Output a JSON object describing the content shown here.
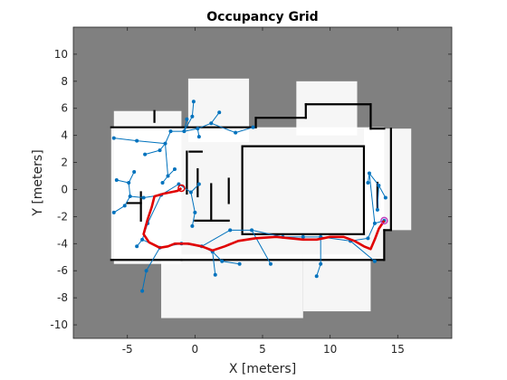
{
  "chart_data": {
    "type": "scatter",
    "title": "Occupancy Grid",
    "xlabel": "X [meters]",
    "ylabel": "Y [meters]",
    "xlim": [
      -9,
      19
    ],
    "ylim": [
      -11,
      12
    ],
    "xticks": [
      -5,
      0,
      5,
      10,
      15
    ],
    "yticks": [
      -10,
      -8,
      -6,
      -4,
      -2,
      0,
      2,
      4,
      6,
      8,
      10
    ],
    "grid": false,
    "colors": {
      "unknown": "#808080",
      "free": "#ffffff",
      "occupied": "#000000",
      "tree": "#0072bd",
      "path": "#e00000",
      "start": "#e00000",
      "goal": "#c040c0"
    },
    "free_regions": [
      {
        "x": [
          -6.2,
          14
        ],
        "y": [
          -5.2,
          4.6
        ]
      },
      {
        "x": [
          -6,
          -1
        ],
        "y": [
          -5.5,
          5.8
        ]
      },
      {
        "x": [
          -0.5,
          4
        ],
        "y": [
          3.5,
          8.2
        ]
      },
      {
        "x": [
          7.5,
          12
        ],
        "y": [
          4,
          8
        ]
      },
      {
        "x": [
          -2.5,
          8
        ],
        "y": [
          -9.5,
          -4.8
        ]
      },
      {
        "x": [
          8,
          13
        ],
        "y": [
          -9,
          -4.8
        ]
      },
      {
        "x": [
          12.5,
          16
        ],
        "y": [
          -3,
          4.5
        ]
      }
    ],
    "walls": [
      [
        [
          -6.2,
          4.6
        ],
        [
          4.5,
          4.6
        ]
      ],
      [
        [
          4.5,
          4.6
        ],
        [
          4.5,
          5.3
        ]
      ],
      [
        [
          4.5,
          5.3
        ],
        [
          8.2,
          5.3
        ]
      ],
      [
        [
          8.2,
          5.3
        ],
        [
          8.2,
          6.3
        ]
      ],
      [
        [
          8.2,
          6.3
        ],
        [
          13,
          6.3
        ]
      ],
      [
        [
          13,
          6.3
        ],
        [
          13,
          4.5
        ]
      ],
      [
        [
          13,
          4.5
        ],
        [
          14,
          4.5
        ]
      ],
      [
        [
          -3,
          5
        ],
        [
          -3,
          5.8
        ]
      ],
      [
        [
          -0.6,
          2.8
        ],
        [
          -0.6,
          -0.3
        ]
      ],
      [
        [
          0.5,
          2.8
        ],
        [
          -0.4,
          2.8
        ]
      ],
      [
        [
          0.2,
          1.5
        ],
        [
          0.2,
          -0.5
        ]
      ],
      [
        [
          3.5,
          3.2
        ],
        [
          12.5,
          3.2
        ]
      ],
      [
        [
          3.5,
          3.2
        ],
        [
          3.5,
          -3.3
        ]
      ],
      [
        [
          3.5,
          -3.3
        ],
        [
          12.5,
          -3.3
        ]
      ],
      [
        [
          12.5,
          -3.3
        ],
        [
          12.5,
          3.2
        ]
      ],
      [
        [
          -6.2,
          -5.2
        ],
        [
          -1,
          -5.2
        ]
      ],
      [
        [
          -1,
          -5.2
        ],
        [
          14,
          -5.2
        ]
      ],
      [
        [
          14,
          -5.2
        ],
        [
          14,
          -3
        ]
      ],
      [
        [
          14,
          -3
        ],
        [
          14.5,
          -3
        ]
      ],
      [
        [
          14.5,
          -3
        ],
        [
          14.5,
          4.5
        ]
      ],
      [
        [
          -4,
          -2.3
        ],
        [
          -4,
          -0.2
        ]
      ],
      [
        [
          -5,
          -1
        ],
        [
          -4,
          -1
        ]
      ],
      [
        [
          0,
          -2.3
        ],
        [
          2.5,
          -2.3
        ]
      ],
      [
        [
          2.5,
          -1
        ],
        [
          2.5,
          0.8
        ]
      ],
      [
        [
          1.2,
          -2.3
        ],
        [
          1.2,
          0.4
        ]
      ],
      [
        [
          13.5,
          -1.5
        ],
        [
          13.5,
          0.5
        ]
      ]
    ],
    "tree_edges": [
      [
        [
          -6,
          3.8
        ],
        [
          -4.3,
          3.6
        ]
      ],
      [
        [
          -4.3,
          3.6
        ],
        [
          -2.2,
          3.4
        ]
      ],
      [
        [
          -2.2,
          3.4
        ],
        [
          -1.8,
          4.3
        ]
      ],
      [
        [
          -1.8,
          4.3
        ],
        [
          -0.8,
          4.3
        ]
      ],
      [
        [
          -0.8,
          4.3
        ],
        [
          -0.2,
          5.4
        ]
      ],
      [
        [
          -0.2,
          5.4
        ],
        [
          -0.1,
          6.5
        ]
      ],
      [
        [
          -0.8,
          4.3
        ],
        [
          0.2,
          4.5
        ]
      ],
      [
        [
          0.2,
          4.5
        ],
        [
          1.2,
          4.9
        ]
      ],
      [
        [
          1.2,
          4.9
        ],
        [
          1.8,
          5.7
        ]
      ],
      [
        [
          1.2,
          4.9
        ],
        [
          3,
          4.2
        ]
      ],
      [
        [
          3,
          4.2
        ],
        [
          4.3,
          4.6
        ]
      ],
      [
        [
          0.2,
          4.5
        ],
        [
          0.3,
          3.9
        ]
      ],
      [
        [
          -0.8,
          4.3
        ],
        [
          -0.6,
          5.2
        ]
      ],
      [
        [
          -2.2,
          3.4
        ],
        [
          -2.6,
          2.9
        ]
      ],
      [
        [
          -2.6,
          2.9
        ],
        [
          -3.7,
          2.6
        ]
      ],
      [
        [
          -2.2,
          3.4
        ],
        [
          -2,
          1
        ]
      ],
      [
        [
          -2,
          1
        ],
        [
          -2.4,
          0.5
        ]
      ],
      [
        [
          -2,
          1
        ],
        [
          -1.5,
          1.5
        ]
      ],
      [
        [
          -4.5,
          1.3
        ],
        [
          -4.9,
          0.5
        ]
      ],
      [
        [
          -4.9,
          0.5
        ],
        [
          -5.8,
          0.7
        ]
      ],
      [
        [
          -4.9,
          0.5
        ],
        [
          -4.8,
          -0.5
        ]
      ],
      [
        [
          -4.8,
          -0.5
        ],
        [
          -5.2,
          -1.2
        ]
      ],
      [
        [
          -5.2,
          -1.2
        ],
        [
          -6,
          -1.7
        ]
      ],
      [
        [
          -4.8,
          -0.5
        ],
        [
          -3.8,
          -0.6
        ]
      ],
      [
        [
          -3.8,
          -0.6
        ],
        [
          -2.5,
          -0.4
        ]
      ],
      [
        [
          -2.5,
          -0.4
        ],
        [
          -1.2,
          0.4
        ]
      ],
      [
        [
          -1.2,
          0.4
        ],
        [
          -0.3,
          -0.2
        ]
      ],
      [
        [
          -0.3,
          -0.2
        ],
        [
          0.3,
          0.4
        ]
      ],
      [
        [
          -0.3,
          -0.2
        ],
        [
          0,
          -1.7
        ]
      ],
      [
        [
          0,
          -1.7
        ],
        [
          -0.2,
          -2.7
        ]
      ],
      [
        [
          -2.5,
          -0.4
        ],
        [
          -3.5,
          -2.5
        ]
      ],
      [
        [
          -3.5,
          -2.5
        ],
        [
          -3.9,
          -3.7
        ]
      ],
      [
        [
          -3.9,
          -3.7
        ],
        [
          -4.3,
          -4.2
        ]
      ],
      [
        [
          -3.9,
          -3.7
        ],
        [
          -2.6,
          -4.3
        ]
      ],
      [
        [
          -2.6,
          -4.3
        ],
        [
          -1,
          -4
        ]
      ],
      [
        [
          -1,
          -4
        ],
        [
          0.5,
          -4.2
        ]
      ],
      [
        [
          0.5,
          -4.2
        ],
        [
          1.3,
          -4.6
        ]
      ],
      [
        [
          1.3,
          -4.6
        ],
        [
          2,
          -5.3
        ]
      ],
      [
        [
          2,
          -5.3
        ],
        [
          3.3,
          -5.5
        ]
      ],
      [
        [
          1.3,
          -4.6
        ],
        [
          1.5,
          -6.3
        ]
      ],
      [
        [
          -2.6,
          -4.3
        ],
        [
          -3.6,
          -6
        ]
      ],
      [
        [
          -3.6,
          -6
        ],
        [
          -3.9,
          -7.5
        ]
      ],
      [
        [
          0.5,
          -4.2
        ],
        [
          2.6,
          -3
        ]
      ],
      [
        [
          2.6,
          -3
        ],
        [
          4.2,
          -3
        ]
      ],
      [
        [
          4.2,
          -3
        ],
        [
          5.6,
          -5.5
        ]
      ],
      [
        [
          4.2,
          -3
        ],
        [
          6.5,
          -3.5
        ]
      ],
      [
        [
          6.5,
          -3.5
        ],
        [
          8,
          -3.5
        ]
      ],
      [
        [
          8,
          -3.5
        ],
        [
          9.3,
          -3.5
        ]
      ],
      [
        [
          9.3,
          -3.5
        ],
        [
          9.3,
          -5.5
        ]
      ],
      [
        [
          9.3,
          -5.5
        ],
        [
          9,
          -6.4
        ]
      ],
      [
        [
          9.3,
          -3.5
        ],
        [
          11.5,
          -3.8
        ]
      ],
      [
        [
          11.5,
          -3.8
        ],
        [
          13.3,
          -5.3
        ]
      ],
      [
        [
          11.5,
          -3.8
        ],
        [
          12.8,
          -3.6
        ]
      ],
      [
        [
          12.8,
          -3.6
        ],
        [
          13.3,
          -2.5
        ]
      ],
      [
        [
          13.3,
          -2.5
        ],
        [
          14,
          -2.3
        ]
      ],
      [
        [
          13.3,
          -2.5
        ],
        [
          12.9,
          1.2
        ]
      ],
      [
        [
          12.9,
          1.2
        ],
        [
          13.6,
          0.3
        ]
      ],
      [
        [
          13.6,
          0.3
        ],
        [
          13.5,
          -1.5
        ]
      ],
      [
        [
          12.9,
          1.2
        ],
        [
          12.8,
          0.5
        ]
      ],
      [
        [
          13.6,
          0.3
        ],
        [
          14.1,
          -0.6
        ]
      ]
    ],
    "tree_nodes": [
      [
        -6,
        3.8
      ],
      [
        -4.3,
        3.6
      ],
      [
        -2.2,
        3.4
      ],
      [
        -1.8,
        4.3
      ],
      [
        -0.8,
        4.3
      ],
      [
        -0.2,
        5.4
      ],
      [
        -0.1,
        6.5
      ],
      [
        0.2,
        4.5
      ],
      [
        1.2,
        4.9
      ],
      [
        1.8,
        5.7
      ],
      [
        3,
        4.2
      ],
      [
        4.3,
        4.6
      ],
      [
        0.3,
        3.9
      ],
      [
        -0.6,
        5.2
      ],
      [
        -2.6,
        2.9
      ],
      [
        -3.7,
        2.6
      ],
      [
        -2,
        1
      ],
      [
        -2.4,
        0.5
      ],
      [
        -1.5,
        1.5
      ],
      [
        -4.5,
        1.3
      ],
      [
        -4.9,
        0.5
      ],
      [
        -5.8,
        0.7
      ],
      [
        -4.8,
        -0.5
      ],
      [
        -5.2,
        -1.2
      ],
      [
        -6,
        -1.7
      ],
      [
        -3.8,
        -0.6
      ],
      [
        -2.5,
        -0.4
      ],
      [
        -1.2,
        0.4
      ],
      [
        -0.3,
        -0.2
      ],
      [
        0.3,
        0.4
      ],
      [
        0,
        -1.7
      ],
      [
        -0.2,
        -2.7
      ],
      [
        -3.5,
        -2.5
      ],
      [
        -3.9,
        -3.7
      ],
      [
        -4.3,
        -4.2
      ],
      [
        -2.6,
        -4.3
      ],
      [
        -1,
        -4
      ],
      [
        0.5,
        -4.2
      ],
      [
        1.3,
        -4.6
      ],
      [
        2,
        -5.3
      ],
      [
        3.3,
        -5.5
      ],
      [
        1.5,
        -6.3
      ],
      [
        -3.6,
        -6
      ],
      [
        -3.9,
        -7.5
      ],
      [
        2.6,
        -3
      ],
      [
        4.2,
        -3
      ],
      [
        5.6,
        -5.5
      ],
      [
        6.5,
        -3.5
      ],
      [
        8,
        -3.5
      ],
      [
        9.3,
        -3.5
      ],
      [
        9.3,
        -5.5
      ],
      [
        9,
        -6.4
      ],
      [
        11.5,
        -3.8
      ],
      [
        13.3,
        -5.3
      ],
      [
        12.8,
        -3.6
      ],
      [
        13.3,
        -2.5
      ],
      [
        14,
        -2.3
      ],
      [
        12.9,
        1.2
      ],
      [
        13.6,
        0.3
      ],
      [
        13.5,
        -1.5
      ],
      [
        12.8,
        0.5
      ],
      [
        14.1,
        -0.6
      ]
    ],
    "path": [
      [
        -1,
        0.1
      ],
      [
        -1.3,
        -0.1
      ],
      [
        -2.3,
        -0.3
      ],
      [
        -3,
        -0.5
      ],
      [
        -3.2,
        -1.3
      ],
      [
        -3.5,
        -2.2
      ],
      [
        -3.8,
        -3.3
      ],
      [
        -3.4,
        -3.9
      ],
      [
        -2.6,
        -4.3
      ],
      [
        -2,
        -4.2
      ],
      [
        -1.5,
        -4
      ],
      [
        -0.5,
        -4
      ],
      [
        0.5,
        -4.2
      ],
      [
        1.3,
        -4.5
      ],
      [
        2.2,
        -4.2
      ],
      [
        3.2,
        -3.8
      ],
      [
        4.5,
        -3.6
      ],
      [
        6,
        -3.5
      ],
      [
        7,
        -3.6
      ],
      [
        8,
        -3.7
      ],
      [
        9,
        -3.7
      ],
      [
        10,
        -3.5
      ],
      [
        11,
        -3.5
      ],
      [
        11.8,
        -3.8
      ],
      [
        12.5,
        -4.2
      ],
      [
        13,
        -4.4
      ],
      [
        13.3,
        -3.7
      ],
      [
        13.6,
        -2.9
      ],
      [
        14,
        -2.3
      ]
    ],
    "start": [
      -1,
      0.1
    ],
    "goal": [
      14,
      -2.3
    ]
  }
}
